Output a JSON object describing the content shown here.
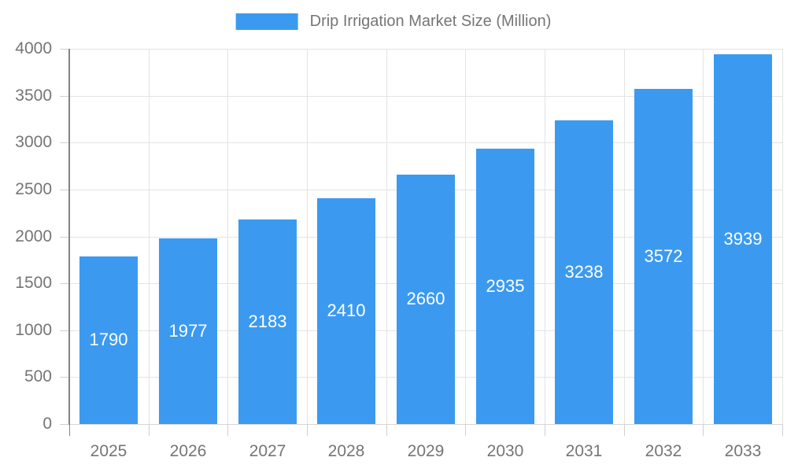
{
  "chart_data": {
    "type": "bar",
    "title": "Drip Irrigation Market Size (Million)",
    "categories": [
      "2025",
      "2026",
      "2027",
      "2028",
      "2029",
      "2030",
      "2031",
      "2032",
      "2033"
    ],
    "values": [
      1790,
      1977,
      2183,
      2410,
      2660,
      2935,
      3238,
      3572,
      3939
    ],
    "xlabel": "",
    "ylabel": "",
    "ylim": [
      0,
      4000
    ],
    "ytick_step": 500,
    "ytick_labels": [
      "0",
      "500",
      "1000",
      "1500",
      "2000",
      "2500",
      "3000",
      "3500",
      "4000"
    ],
    "grid": true,
    "legend_position": "top-center",
    "value_labels_position": "inside-center",
    "colors": {
      "bar": "#3b9af0",
      "value_label": "#ffffff",
      "axis_label": "#757575",
      "grid_line": "#e3e3e3",
      "baseline": "#d6d6d6",
      "tick": "#cfcfcf",
      "y_axis_line": "#848484",
      "background": "#ffffff"
    }
  }
}
